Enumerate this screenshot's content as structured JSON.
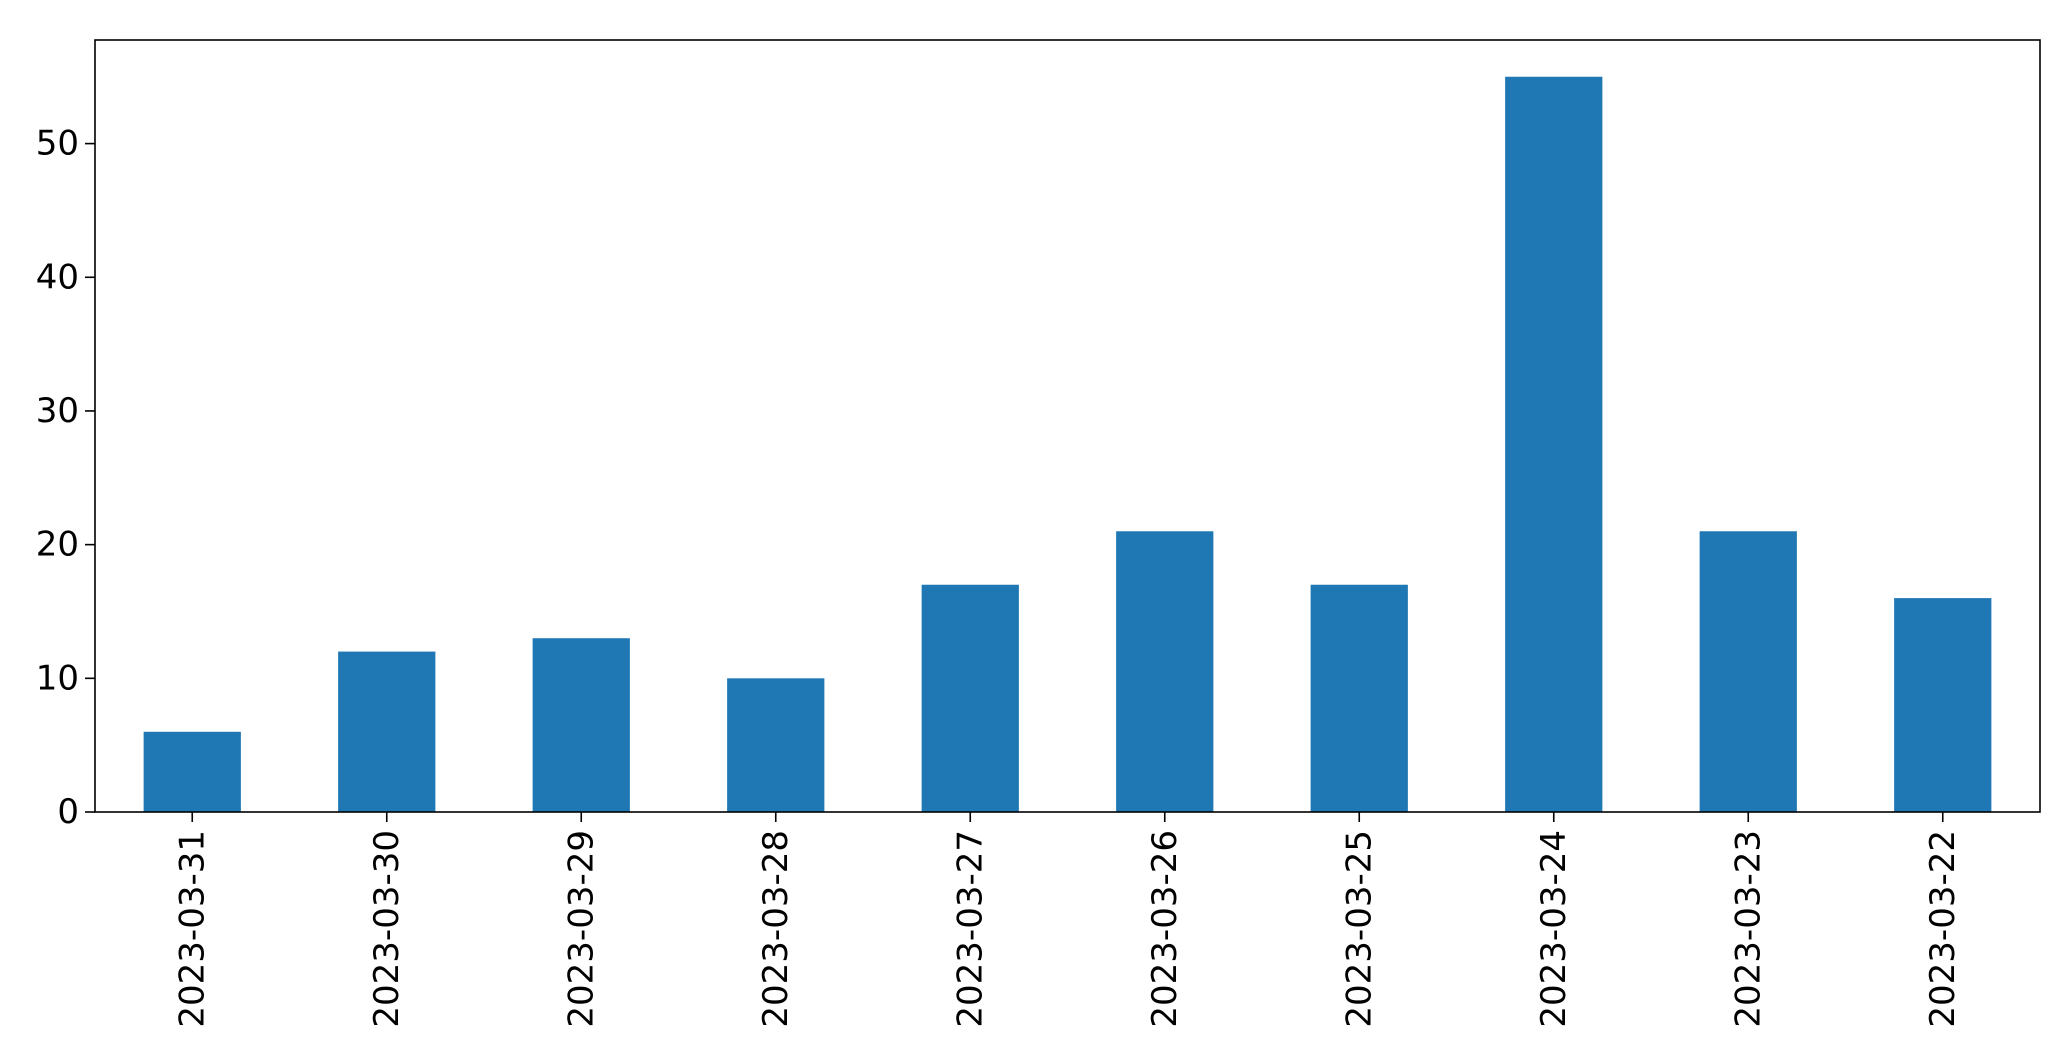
{
  "chart_data": {
    "type": "bar",
    "title": "",
    "xlabel": "",
    "ylabel": "",
    "categories": [
      "2023-03-31",
      "2023-03-30",
      "2023-03-29",
      "2023-03-28",
      "2023-03-27",
      "2023-03-26",
      "2023-03-25",
      "2023-03-24",
      "2023-03-23",
      "2023-03-22"
    ],
    "values": [
      6,
      12,
      13,
      10,
      17,
      21,
      17,
      55,
      21,
      16
    ],
    "ylim": [
      0,
      57.75
    ],
    "yticks": [
      0,
      10,
      20,
      30,
      40,
      50
    ],
    "grid": false,
    "legend": "none",
    "bar_color": "#1f77b4"
  }
}
